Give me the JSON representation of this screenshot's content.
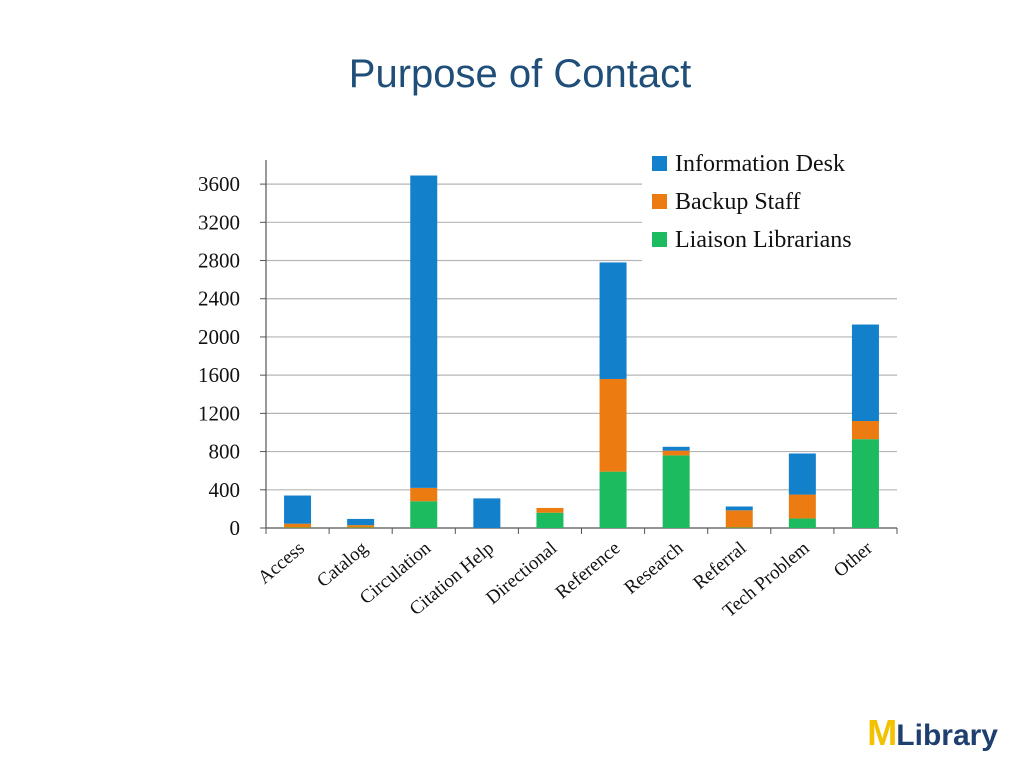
{
  "slide": {
    "title": "Purpose of Contact"
  },
  "chart_data": {
    "type": "bar",
    "stacked": true,
    "categories": [
      "Access",
      "Catalog",
      "Circulation",
      "Citation Help",
      "Directional",
      "Reference",
      "Research",
      "Referral",
      "Tech Problem",
      "Other"
    ],
    "series": [
      {
        "name": "Liaison Librarians",
        "color": "#1dbb5f",
        "values": [
          5,
          5,
          280,
          0,
          160,
          590,
          760,
          5,
          100,
          930
        ]
      },
      {
        "name": "Backup Staff",
        "color": "#ec7c12",
        "values": [
          40,
          25,
          140,
          0,
          50,
          970,
          50,
          180,
          250,
          190
        ]
      },
      {
        "name": "Information Desk",
        "color": "#1380cc",
        "values": [
          295,
          65,
          3270,
          310,
          0,
          1220,
          40,
          40,
          430,
          1010
        ]
      }
    ],
    "yticks": [
      0,
      400,
      800,
      1200,
      1600,
      2000,
      2400,
      2800,
      3200,
      3600
    ],
    "ylim": [
      0,
      3800
    ],
    "grid": true,
    "legend": {
      "position": "top-right",
      "entries": [
        {
          "label": "Information Desk",
          "color": "#1380cc"
        },
        {
          "label": "Backup Staff",
          "color": "#ec7c12"
        },
        {
          "label": "Liaison Librarians",
          "color": "#1dbb5f"
        }
      ]
    }
  },
  "logo": {
    "mark": "M",
    "text": "Library"
  }
}
